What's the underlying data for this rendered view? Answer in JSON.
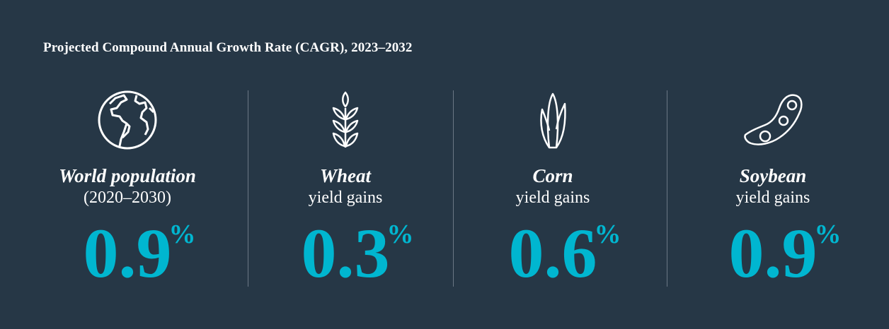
{
  "title": "Projected Compound Annual Growth Rate (CAGR), 2023–2032",
  "accent_color": "#00b6d0",
  "background_color": "#263746",
  "items": [
    {
      "icon": "globe-icon",
      "name": "World population",
      "sub": "(2020–2030)",
      "value": "0.9",
      "unit": "%"
    },
    {
      "icon": "wheat-icon",
      "name": "Wheat",
      "sub": "yield gains",
      "value": "0.3",
      "unit": "%"
    },
    {
      "icon": "corn-icon",
      "name": "Corn",
      "sub": "yield gains",
      "value": "0.6",
      "unit": "%"
    },
    {
      "icon": "soybean-icon",
      "name": "Soybean",
      "sub": "yield gains",
      "value": "0.9",
      "unit": "%"
    }
  ]
}
